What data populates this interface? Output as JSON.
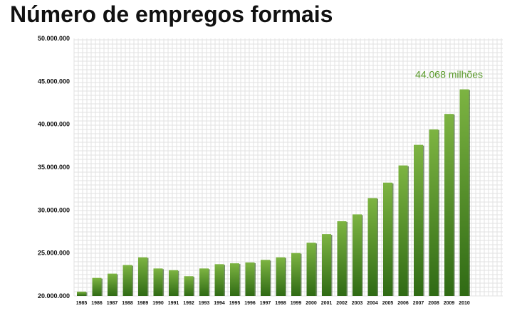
{
  "title": "Número de empregos formais",
  "colors": {
    "bar_top": "#7db442",
    "bar_bottom": "#2f6a14",
    "annotation": "#5a9a2a",
    "grid": "#e2e2e2"
  },
  "chart_data": {
    "type": "bar",
    "title": "Número de empregos formais",
    "xlabel": "",
    "ylabel": "",
    "ylim": [
      20000000,
      50000000
    ],
    "grid": true,
    "categories": [
      "1985",
      "1986",
      "1987",
      "1988",
      "1989",
      "1990",
      "1991",
      "1992",
      "1993",
      "1994",
      "1995",
      "1996",
      "1997",
      "1998",
      "1999",
      "2000",
      "2001",
      "2002",
      "2003",
      "2004",
      "2005",
      "2006",
      "2007",
      "2008",
      "2009",
      "2010"
    ],
    "values": [
      20500000,
      22100000,
      22600000,
      23600000,
      24500000,
      23200000,
      23000000,
      22300000,
      23200000,
      23700000,
      23800000,
      23900000,
      24200000,
      24500000,
      25000000,
      26200000,
      27200000,
      28700000,
      29500000,
      31400000,
      33200000,
      35200000,
      37600000,
      39400000,
      41200000,
      44068000
    ],
    "yticks": [
      "20.000.000",
      "25.000.000",
      "30.000.000",
      "35.000.000",
      "40.000.000",
      "45.000.000",
      "50.000.000"
    ],
    "annotations": [
      {
        "text": "44.068 milhões",
        "category": "2010"
      }
    ]
  }
}
